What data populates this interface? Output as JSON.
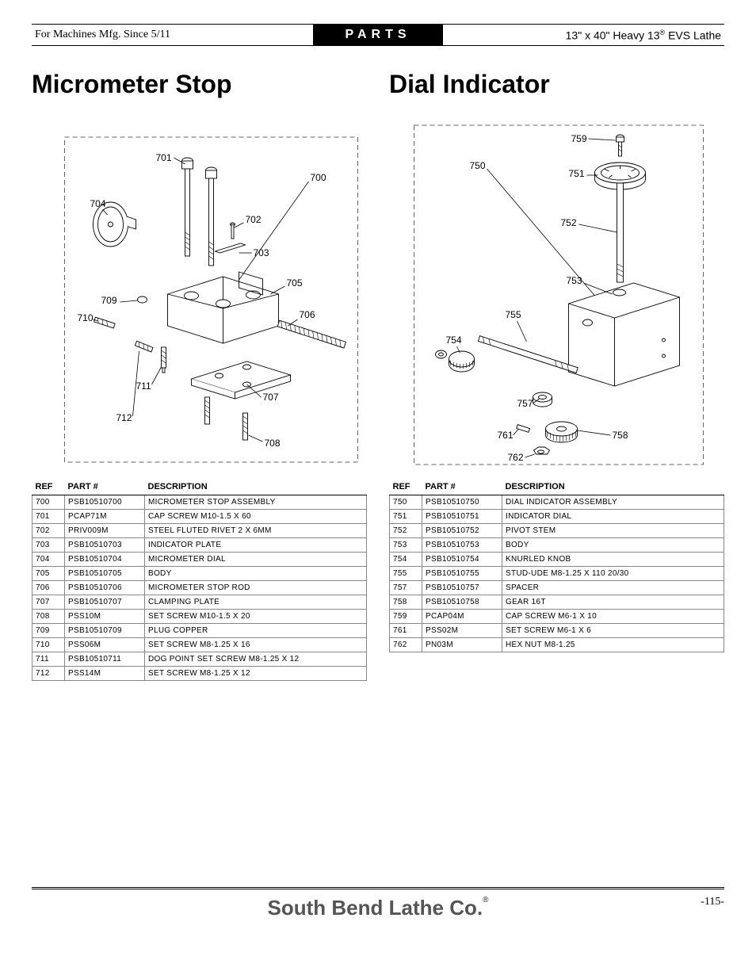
{
  "header": {
    "left": "For Machines Mfg. Since 5/11",
    "center": "PARTS",
    "right_prefix": "13\" x 40\" Heavy 13",
    "right_suffix": " EVS Lathe"
  },
  "left_section": {
    "title": "Micrometer Stop",
    "labels": {
      "l700": "700",
      "l701": "701",
      "l702": "702",
      "l703": "703",
      "l704": "704",
      "l705": "705",
      "l706": "706",
      "l707": "707",
      "l708": "708",
      "l709": "709",
      "l710": "710",
      "l711": "711",
      "l712": "712"
    },
    "table_headers": {
      "ref": "REF",
      "part": "PART #",
      "desc": "DESCRIPTION"
    },
    "rows": [
      {
        "ref": "700",
        "part": "PSB10510700",
        "desc": "MICROMETER STOP ASSEMBLY"
      },
      {
        "ref": "701",
        "part": "PCAP71M",
        "desc": "CAP SCREW M10-1.5 X 60"
      },
      {
        "ref": "702",
        "part": "PRIV009M",
        "desc": "STEEL FLUTED RIVET 2 X 6MM"
      },
      {
        "ref": "703",
        "part": "PSB10510703",
        "desc": "INDICATOR PLATE"
      },
      {
        "ref": "704",
        "part": "PSB10510704",
        "desc": "MICROMETER DIAL"
      },
      {
        "ref": "705",
        "part": "PSB10510705",
        "desc": "BODY"
      },
      {
        "ref": "706",
        "part": "PSB10510706",
        "desc": "MICROMETER STOP ROD"
      },
      {
        "ref": "707",
        "part": "PSB10510707",
        "desc": "CLAMPING PLATE"
      },
      {
        "ref": "708",
        "part": "PSS10M",
        "desc": "SET SCREW M10-1.5 X 20"
      },
      {
        "ref": "709",
        "part": "PSB10510709",
        "desc": "PLUG COPPER"
      },
      {
        "ref": "710",
        "part": "PSS06M",
        "desc": "SET SCREW M8-1.25 X 16"
      },
      {
        "ref": "711",
        "part": "PSB10510711",
        "desc": "DOG POINT SET SCREW M8-1.25 X 12"
      },
      {
        "ref": "712",
        "part": "PSS14M",
        "desc": "SET SCREW M8-1.25 X 12"
      }
    ]
  },
  "right_section": {
    "title": "Dial Indicator",
    "labels": {
      "l750": "750",
      "l751": "751",
      "l752": "752",
      "l753": "753",
      "l754": "754",
      "l755": "755",
      "l757": "757",
      "l758": "758",
      "l759": "759",
      "l761": "761",
      "l762": "762"
    },
    "table_headers": {
      "ref": "REF",
      "part": "PART #",
      "desc": "DESCRIPTION"
    },
    "rows": [
      {
        "ref": "750",
        "part": "PSB10510750",
        "desc": "DIAL INDICATOR ASSEMBLY"
      },
      {
        "ref": "751",
        "part": "PSB10510751",
        "desc": "INDICATOR DIAL"
      },
      {
        "ref": "752",
        "part": "PSB10510752",
        "desc": "PIVOT STEM"
      },
      {
        "ref": "753",
        "part": "PSB10510753",
        "desc": "BODY"
      },
      {
        "ref": "754",
        "part": "PSB10510754",
        "desc": "KNURLED KNOB"
      },
      {
        "ref": "755",
        "part": "PSB10510755",
        "desc": "STUD-UDE M8-1.25 X 110 20/30"
      },
      {
        "ref": "757",
        "part": "PSB10510757",
        "desc": "SPACER"
      },
      {
        "ref": "758",
        "part": "PSB10510758",
        "desc": "GEAR 16T"
      },
      {
        "ref": "759",
        "part": "PCAP04M",
        "desc": "CAP SCREW M6-1 X 10"
      },
      {
        "ref": "761",
        "part": "PSS02M",
        "desc": "SET SCREW M6-1 X 6"
      },
      {
        "ref": "762",
        "part": "PN03M",
        "desc": "HEX NUT M8-1.25"
      }
    ]
  },
  "footer": {
    "brand": "South Bend Lathe Co.",
    "page": "-115-"
  }
}
